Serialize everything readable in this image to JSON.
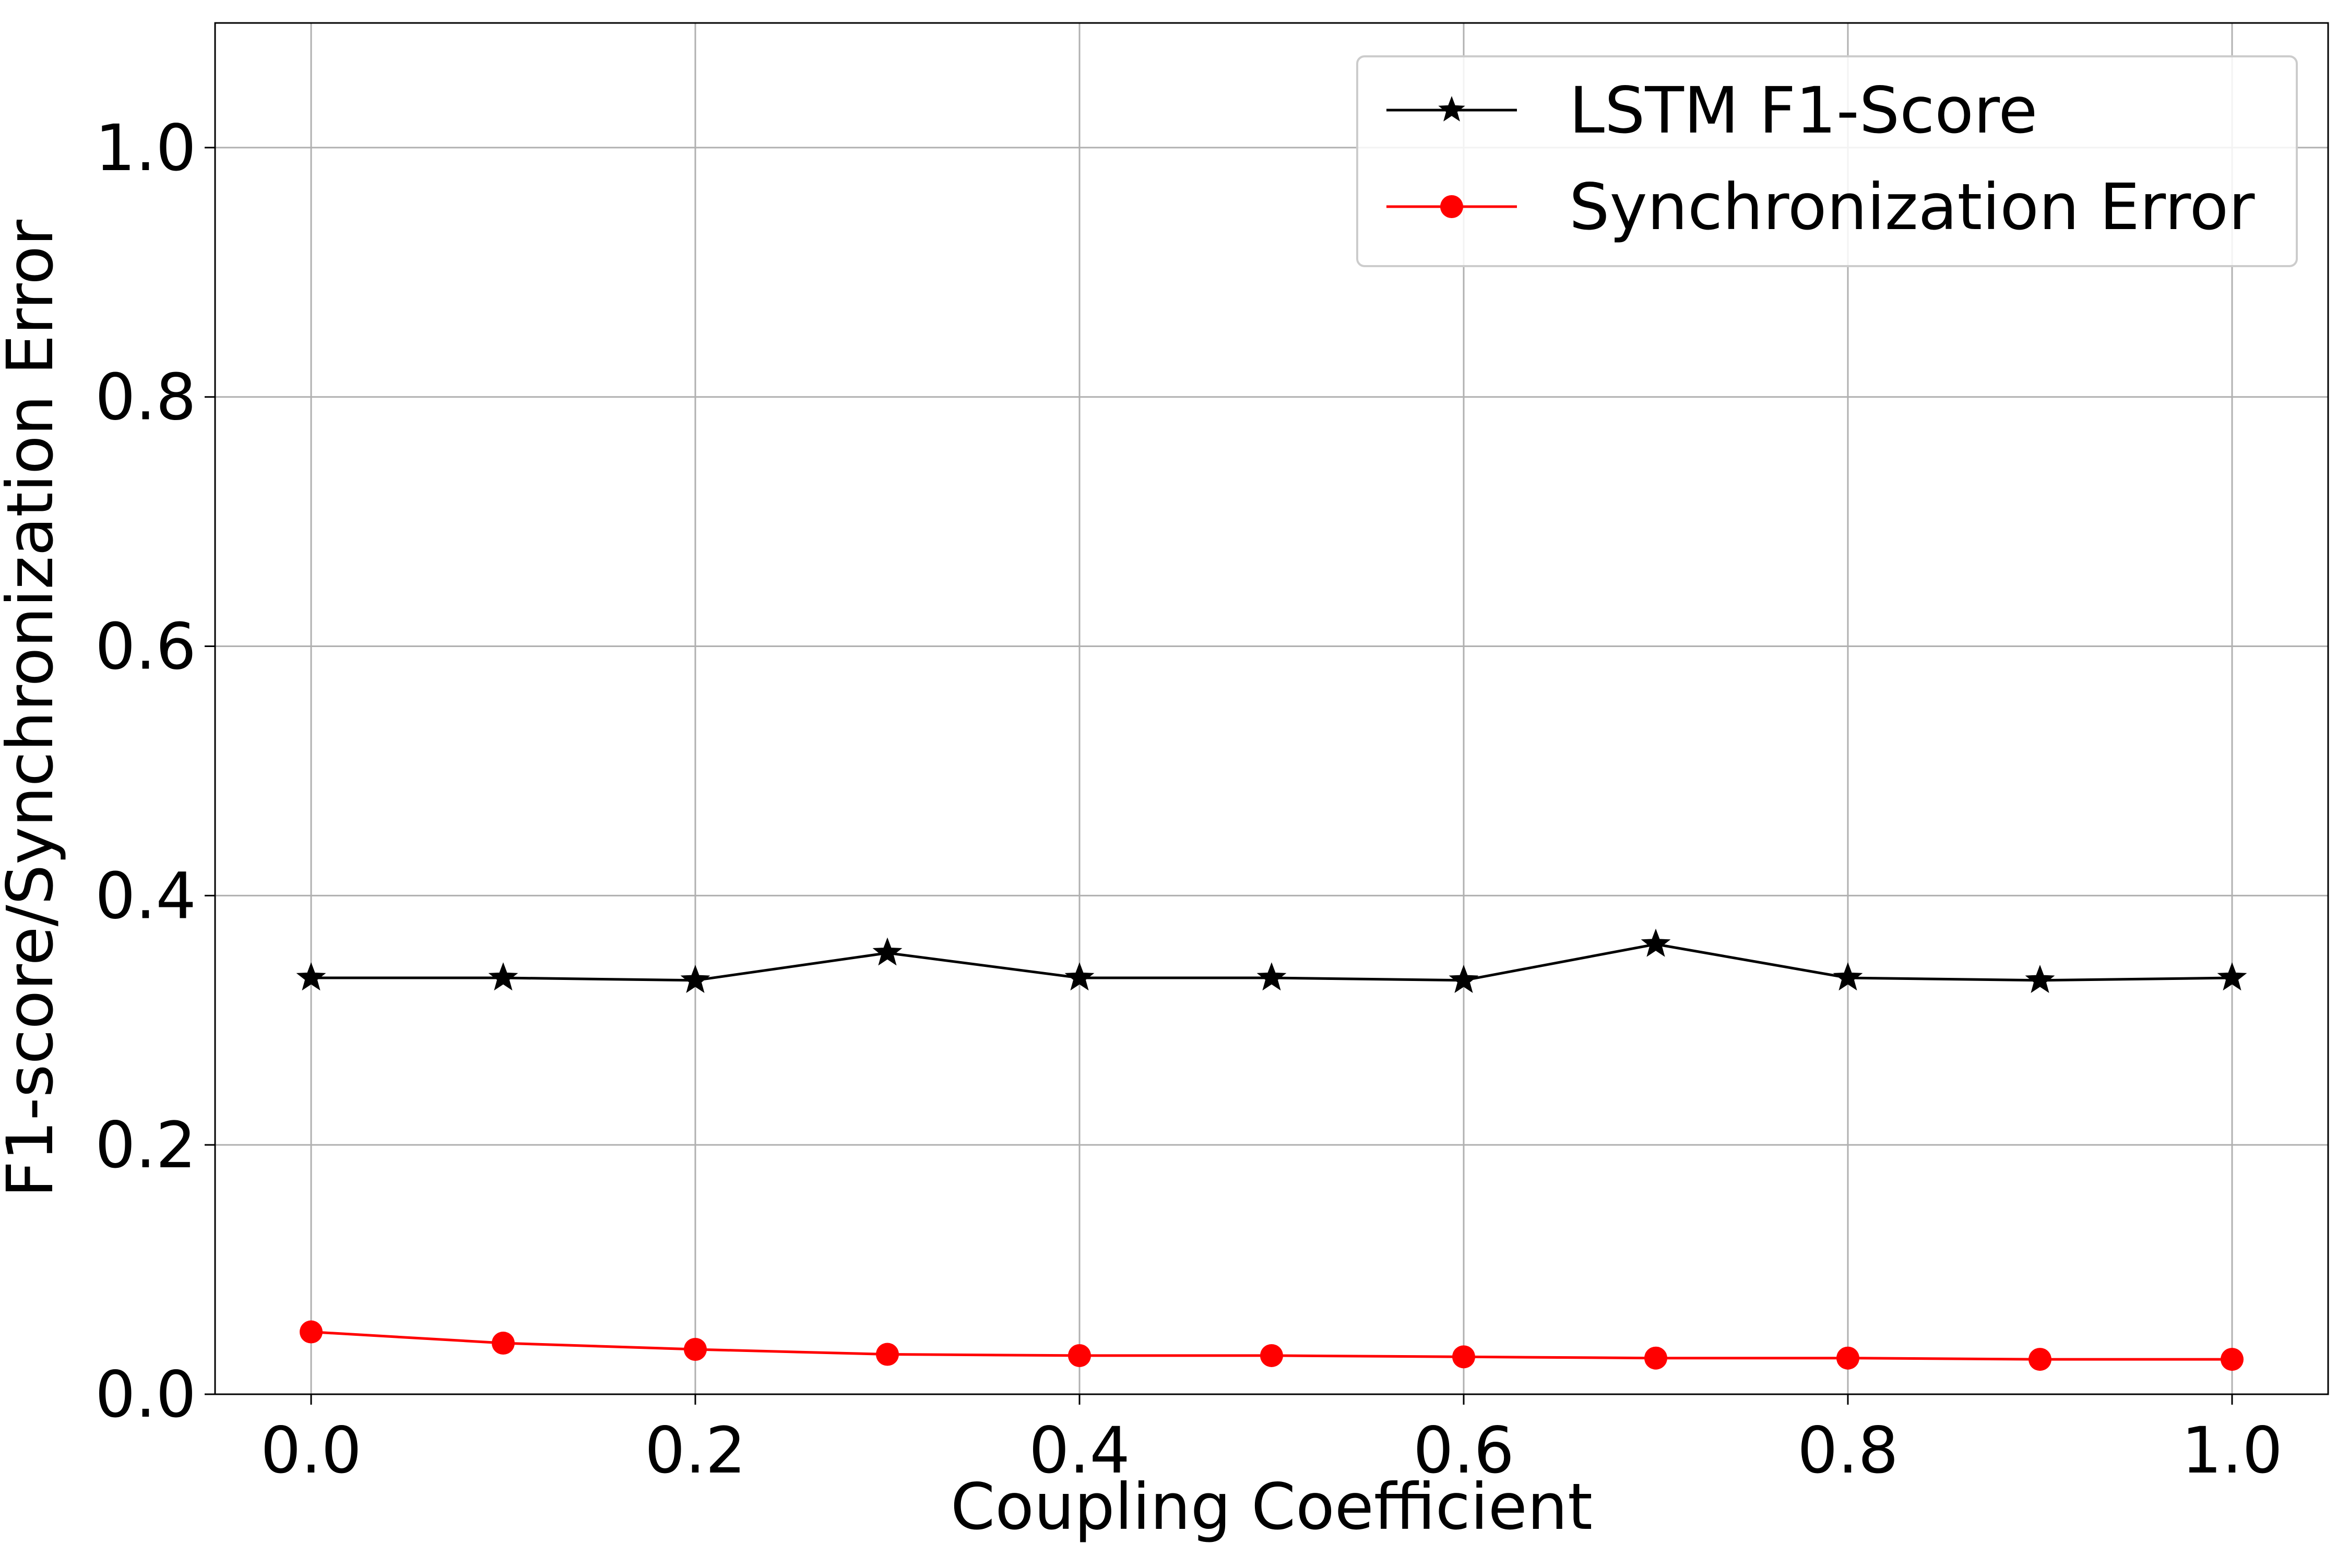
{
  "chart_data": {
    "type": "line",
    "title": "",
    "xlabel": "Coupling Coefficient",
    "ylabel": "F1-score/Synchronization Error",
    "xlim": [
      -0.05,
      1.05
    ],
    "ylim": [
      0.0,
      1.1
    ],
    "x": [
      0.0,
      0.1,
      0.2,
      0.3,
      0.4,
      0.5,
      0.6,
      0.7,
      0.8,
      0.9,
      1.0
    ],
    "xticks": [
      0.0,
      0.2,
      0.4,
      0.6,
      0.8,
      1.0
    ],
    "xtick_labels": [
      "0.0",
      "0.2",
      "0.4",
      "0.6",
      "0.8",
      "1.0"
    ],
    "yticks": [
      0.0,
      0.2,
      0.4,
      0.6,
      0.8,
      1.0
    ],
    "ytick_labels": [
      "0.0",
      "0.2",
      "0.4",
      "0.6",
      "0.8",
      "1.0"
    ],
    "grid": true,
    "legend_position": "top-right",
    "series": [
      {
        "name": "LSTM F1-Score",
        "color": "#000000",
        "marker": "star",
        "values": [
          0.334,
          0.334,
          0.332,
          0.354,
          0.334,
          0.334,
          0.332,
          0.361,
          0.334,
          0.332,
          0.334
        ]
      },
      {
        "name": "Synchronization Error",
        "color": "#ff0000",
        "marker": "circle",
        "values": [
          0.05,
          0.041,
          0.036,
          0.032,
          0.031,
          0.031,
          0.03,
          0.029,
          0.029,
          0.028,
          0.028
        ]
      }
    ]
  }
}
